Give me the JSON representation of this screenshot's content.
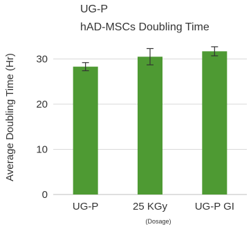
{
  "chart_data": {
    "type": "bar",
    "title_lines": [
      "UG-P",
      "hAD-MSCs Doubling Time"
    ],
    "xlabel": "",
    "xlabel_sub": "(Dosage)",
    "ylabel": "Average Doubling Time (Hr)",
    "categories": [
      "UG-P",
      "25 KGy",
      "UG-P GI"
    ],
    "values": [
      28.3,
      30.5,
      31.7
    ],
    "error": [
      0.9,
      1.8,
      1.0
    ],
    "ylim": [
      0,
      40
    ],
    "yticks": [
      0,
      10,
      20,
      30
    ],
    "grid": true,
    "bar_color": "#4e9a33",
    "grid_color": "#d9d9d9",
    "error_color": "#333333"
  }
}
